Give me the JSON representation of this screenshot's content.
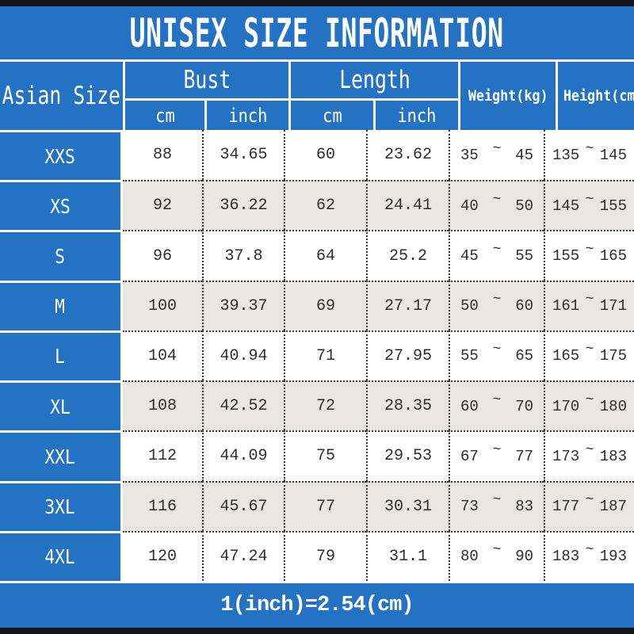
{
  "title": "UNISEX SIZE INFORMATION",
  "footer_note": "1(inch)=2.54(cm)",
  "colors": {
    "blue": "#2472c4",
    "alt_row": "#e8e7e4",
    "text": "#2e2e2e",
    "frame_bar": "#141414",
    "grid_dots": "#3c3c3c"
  },
  "table": {
    "corner_header": "Asian Size",
    "groups": [
      {
        "label": "Bust",
        "children": [
          "cm",
          "inch"
        ]
      },
      {
        "label": "Length",
        "children": [
          "cm",
          "inch"
        ]
      },
      {
        "label": "Weight(kg)",
        "children": []
      },
      {
        "label": "Height(cm)",
        "children": []
      }
    ],
    "range_separator": "~",
    "rows": [
      {
        "size": "XXS",
        "bust_cm": "88",
        "bust_inch": "34.65",
        "length_cm": "60",
        "length_inch": "23.62",
        "weight_min": "35",
        "weight_max": "45",
        "height_min": "135",
        "height_max": "145"
      },
      {
        "size": "XS",
        "bust_cm": "92",
        "bust_inch": "36.22",
        "length_cm": "62",
        "length_inch": "24.41",
        "weight_min": "40",
        "weight_max": "50",
        "height_min": "145",
        "height_max": "155"
      },
      {
        "size": "S",
        "bust_cm": "96",
        "bust_inch": "37.8",
        "length_cm": "64",
        "length_inch": "25.2",
        "weight_min": "45",
        "weight_max": "55",
        "height_min": "155",
        "height_max": "165"
      },
      {
        "size": "M",
        "bust_cm": "100",
        "bust_inch": "39.37",
        "length_cm": "69",
        "length_inch": "27.17",
        "weight_min": "50",
        "weight_max": "60",
        "height_min": "161",
        "height_max": "171"
      },
      {
        "size": "L",
        "bust_cm": "104",
        "bust_inch": "40.94",
        "length_cm": "71",
        "length_inch": "27.95",
        "weight_min": "55",
        "weight_max": "65",
        "height_min": "165",
        "height_max": "175"
      },
      {
        "size": "XL",
        "bust_cm": "108",
        "bust_inch": "42.52",
        "length_cm": "72",
        "length_inch": "28.35",
        "weight_min": "60",
        "weight_max": "70",
        "height_min": "170",
        "height_max": "180"
      },
      {
        "size": "XXL",
        "bust_cm": "112",
        "bust_inch": "44.09",
        "length_cm": "75",
        "length_inch": "29.53",
        "weight_min": "67",
        "weight_max": "77",
        "height_min": "173",
        "height_max": "183"
      },
      {
        "size": "3XL",
        "bust_cm": "116",
        "bust_inch": "45.67",
        "length_cm": "77",
        "length_inch": "30.31",
        "weight_min": "73",
        "weight_max": "83",
        "height_min": "177",
        "height_max": "187"
      },
      {
        "size": "4XL",
        "bust_cm": "120",
        "bust_inch": "47.24",
        "length_cm": "79",
        "length_inch": "31.1",
        "weight_min": "80",
        "weight_max": "90",
        "height_min": "183",
        "height_max": "193"
      }
    ]
  },
  "chart_data": {
    "type": "table",
    "title": "UNISEX SIZE INFORMATION",
    "columns": [
      "Asian Size",
      "Bust cm",
      "Bust inch",
      "Length cm",
      "Length inch",
      "Weight(kg)",
      "Height(cm)"
    ],
    "rows": [
      [
        "XXS",
        88,
        34.65,
        60,
        23.62,
        "35 ~ 45",
        "135 ~ 145"
      ],
      [
        "XS",
        92,
        36.22,
        62,
        24.41,
        "40 ~ 50",
        "145 ~ 155"
      ],
      [
        "S",
        96,
        37.8,
        64,
        25.2,
        "45 ~ 55",
        "155 ~ 165"
      ],
      [
        "M",
        100,
        39.37,
        69,
        27.17,
        "50 ~ 60",
        "161 ~ 171"
      ],
      [
        "L",
        104,
        40.94,
        71,
        27.95,
        "55 ~ 65",
        "165 ~ 175"
      ],
      [
        "XL",
        108,
        42.52,
        72,
        28.35,
        "60 ~ 70",
        "170 ~ 180"
      ],
      [
        "XXL",
        112,
        44.09,
        75,
        29.53,
        "67 ~ 77",
        "173 ~ 183"
      ],
      [
        "3XL",
        116,
        45.67,
        77,
        30.31,
        "73 ~ 83",
        "177 ~ 187"
      ],
      [
        "4XL",
        120,
        47.24,
        79,
        31.1,
        "80 ~ 90",
        "183 ~ 193"
      ]
    ],
    "footnote": "1(inch)=2.54(cm)"
  }
}
